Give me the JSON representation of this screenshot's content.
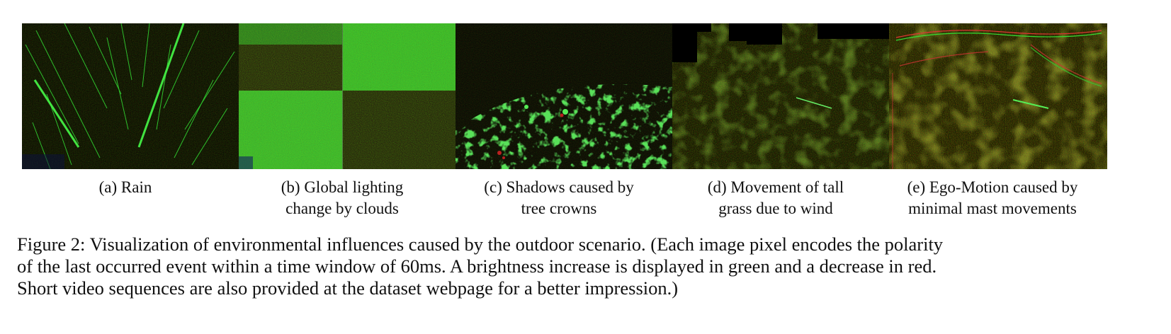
{
  "subfigures": [
    {
      "id": "a",
      "caption_lines": [
        "(a) Rain"
      ]
    },
    {
      "id": "b",
      "caption_lines": [
        "(b) Global lighting",
        "change by clouds"
      ]
    },
    {
      "id": "c",
      "caption_lines": [
        "(c) Shadows caused by",
        "tree crowns"
      ]
    },
    {
      "id": "d",
      "caption_lines": [
        "(d) Movement of tall",
        "grass due to wind"
      ]
    },
    {
      "id": "e",
      "caption_lines": [
        "(e) Ego-Motion caused by",
        "minimal mast movements"
      ]
    }
  ],
  "caption": {
    "lines": [
      "Figure 2: Visualization of environmental influences caused by the outdoor scenario. (Each image pixel encodes the polarity",
      "of the last occurred event within a time window of 60ms. A brightness increase is displayed in green and a decrease in red.",
      "Short video sequences are also provided at the dataset webpage for a better impression.)"
    ]
  },
  "colors": {
    "increase": "#22dd22",
    "decrease": "#dd2222",
    "background": "#050805"
  }
}
